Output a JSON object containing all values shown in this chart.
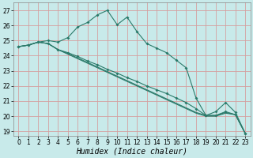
{
  "xlabel": "Humidex (Indice chaleur)",
  "bg_color": "#c8eaea",
  "grid_color": "#d4a0a0",
  "line_color": "#2a7a6a",
  "xlim": [
    -0.5,
    23.5
  ],
  "ylim": [
    18.7,
    27.5
  ],
  "yticks": [
    19,
    20,
    21,
    22,
    23,
    24,
    25,
    26,
    27
  ],
  "xticks": [
    0,
    1,
    2,
    3,
    4,
    5,
    6,
    7,
    8,
    9,
    10,
    11,
    12,
    13,
    14,
    15,
    16,
    17,
    18,
    19,
    20,
    21,
    22,
    23
  ],
  "line1_y": [
    24.6,
    24.7,
    24.9,
    25.0,
    24.9,
    25.2,
    25.9,
    26.2,
    26.7,
    27.0,
    26.05,
    26.55,
    25.6,
    24.8,
    24.5,
    24.2,
    23.7,
    23.2,
    21.2,
    20.05,
    20.3,
    20.9,
    20.25,
    18.85
  ],
  "line2_y": [
    24.6,
    24.7,
    24.9,
    24.8,
    24.4,
    24.2,
    23.95,
    23.65,
    23.4,
    23.1,
    22.85,
    22.55,
    22.3,
    22.0,
    21.75,
    21.5,
    21.2,
    20.9,
    20.5,
    20.05,
    20.05,
    20.3,
    20.1,
    18.85
  ],
  "line3_y": [
    24.6,
    24.7,
    24.9,
    24.8,
    24.4,
    24.15,
    23.85,
    23.55,
    23.25,
    22.95,
    22.65,
    22.35,
    22.05,
    21.75,
    21.45,
    21.15,
    20.85,
    20.55,
    20.25,
    20.05,
    20.05,
    20.25,
    20.1,
    18.85
  ],
  "line4_y": [
    24.6,
    24.7,
    24.9,
    24.8,
    24.4,
    24.1,
    23.8,
    23.5,
    23.2,
    22.9,
    22.6,
    22.3,
    22.0,
    21.7,
    21.4,
    21.1,
    20.8,
    20.5,
    20.2,
    20.0,
    20.0,
    20.2,
    20.1,
    18.85
  ],
  "markersize": 2.0,
  "linewidth": 0.8,
  "xlabel_fontsize": 7,
  "tick_fontsize": 5.5
}
